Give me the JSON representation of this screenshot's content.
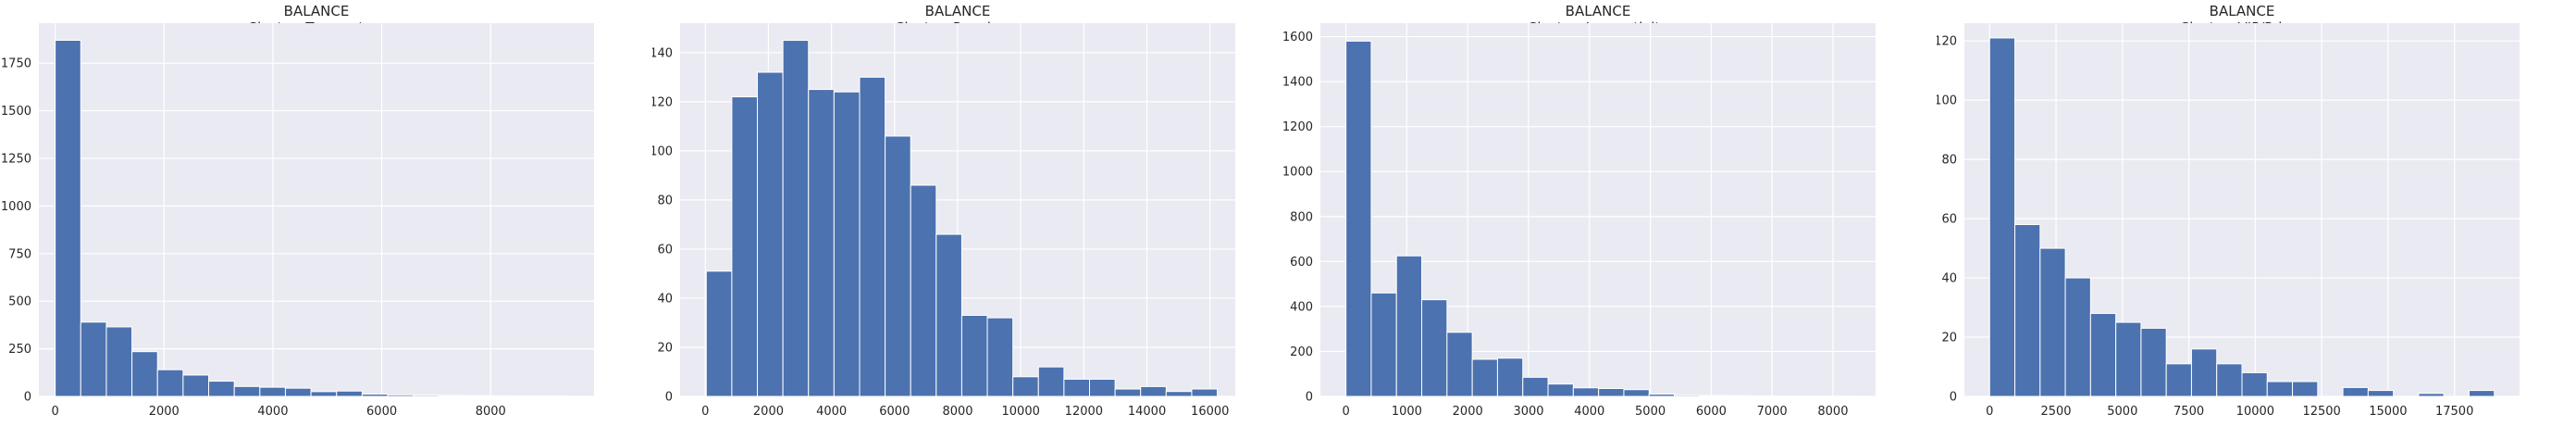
{
  "chart_data": [
    {
      "type": "bar",
      "title": "BALANCE",
      "subtitle": "Cluster: Transactors",
      "xlim": [
        -300,
        9900
      ],
      "ylim": [
        0,
        1960
      ],
      "xticks": [
        0,
        2000,
        4000,
        6000,
        8000
      ],
      "yticks": [
        0,
        250,
        500,
        750,
        1000,
        1250,
        1500,
        1750
      ],
      "bin_start": 0,
      "bin_width": 470,
      "values": [
        1870,
        390,
        365,
        235,
        140,
        112,
        80,
        52,
        48,
        43,
        25,
        28,
        12,
        8,
        6,
        5,
        4,
        3,
        2,
        2
      ],
      "color": "#4c72b0",
      "grid": true,
      "background": "#eaeaf2"
    },
    {
      "type": "bar",
      "title": "BALANCE",
      "subtitle": "Cluster: Revolvers",
      "xlim": [
        -800,
        16800
      ],
      "ylim": [
        0,
        152
      ],
      "xticks": [
        0,
        2000,
        4000,
        6000,
        8000,
        10000,
        12000,
        14000,
        16000
      ],
      "yticks": [
        0,
        20,
        40,
        60,
        80,
        100,
        120,
        140
      ],
      "bin_start": 30,
      "bin_width": 810,
      "values": [
        51,
        122,
        132,
        145,
        125,
        124,
        130,
        106,
        86,
        66,
        33,
        32,
        8,
        12,
        7,
        7,
        3,
        4,
        2,
        3
      ],
      "color": "#4c72b0",
      "grid": true,
      "background": "#eaeaf2"
    },
    {
      "type": "bar",
      "title": "BALANCE",
      "subtitle": "Cluster: Low activity",
      "xlim": [
        -420,
        8700
      ],
      "ylim": [
        0,
        1660
      ],
      "xticks": [
        0,
        1000,
        2000,
        3000,
        4000,
        5000,
        6000,
        7000,
        8000
      ],
      "yticks": [
        0,
        200,
        400,
        600,
        800,
        1000,
        1200,
        1400,
        1600
      ],
      "bin_start": 0,
      "bin_width": 415,
      "values": [
        1580,
        460,
        625,
        430,
        285,
        165,
        170,
        85,
        55,
        38,
        35,
        30,
        10,
        5,
        4,
        3,
        2,
        1,
        1,
        1
      ],
      "color": "#4c72b0",
      "grid": true,
      "background": "#eaeaf2"
    },
    {
      "type": "bar",
      "title": "BALANCE",
      "subtitle": "Cluster: VIP/Prime",
      "xlim": [
        -950,
        19950
      ],
      "ylim": [
        0,
        126
      ],
      "xticks": [
        0,
        2500,
        5000,
        7500,
        10000,
        12500,
        15000,
        17500
      ],
      "yticks": [
        0,
        20,
        40,
        60,
        80,
        100,
        120
      ],
      "bin_start": 0,
      "bin_width": 950,
      "values": [
        121,
        58,
        50,
        40,
        28,
        25,
        23,
        11,
        16,
        11,
        8,
        5,
        5,
        0,
        3,
        2,
        0,
        1,
        0,
        2
      ],
      "color": "#4c72b0",
      "grid": true,
      "background": "#eaeaf2"
    }
  ]
}
